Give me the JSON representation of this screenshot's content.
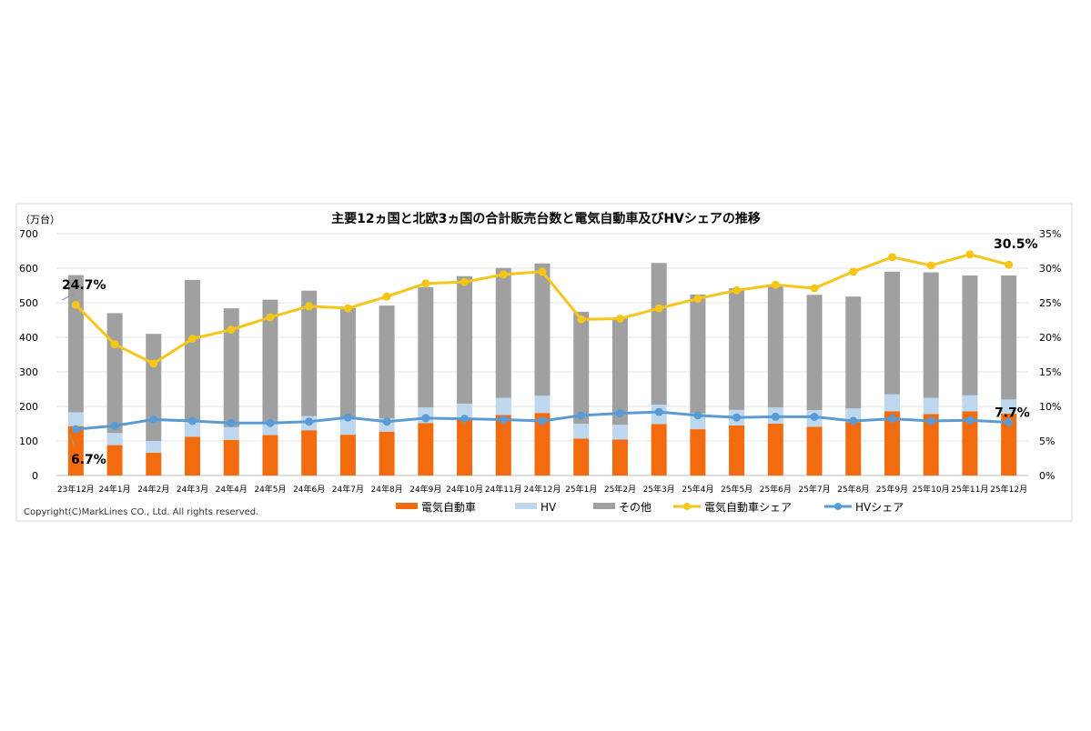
{
  "chart_data": {
    "type": "bar",
    "title": "主要12ヵ国と北欧3ヵ国の合計販売台数と電気自動車及びHVシェアの推移",
    "ylabel": "（万台）",
    "ylim": [
      0,
      700
    ],
    "y_ticks": [
      "0",
      "100",
      "200",
      "300",
      "400",
      "500",
      "600",
      "700"
    ],
    "y2lim": [
      0,
      35
    ],
    "y2_ticks": [
      "0%",
      "5%",
      "10%",
      "15%",
      "20%",
      "25%",
      "30%",
      "35%"
    ],
    "grid": true,
    "legend_position": "bottom",
    "categories": [
      "23年12月",
      "24年1月",
      "24年2月",
      "24年3月",
      "24年4月",
      "24年5月",
      "24年6月",
      "24年7月",
      "24年8月",
      "24年9月",
      "24年10月",
      "24年11月",
      "24年12月",
      "25年1月",
      "25年2月",
      "25年3月",
      "25年4月",
      "25年5月",
      "25年6月",
      "25年7月",
      "25年8月",
      "25年9月",
      "25年10月",
      "25年11月",
      "25年12月"
    ],
    "series": [
      {
        "name": "電気自動車",
        "kind": "bar",
        "color": "#f26b0f",
        "values": [
          143,
          88,
          66,
          112,
          103,
          117,
          131,
          118,
          127,
          152,
          162,
          175,
          181,
          107,
          104,
          149,
          134,
          145,
          150,
          141,
          155,
          186,
          178,
          186,
          179
        ]
      },
      {
        "name": "HV",
        "kind": "bar",
        "color": "#bdd7ee",
        "values": [
          40,
          35,
          34,
          46,
          37,
          38,
          41,
          47,
          38,
          45,
          46,
          50,
          50,
          43,
          43,
          56,
          46,
          45,
          47,
          48,
          39,
          49,
          47,
          46,
          41
        ]
      },
      {
        "name": "その他",
        "kind": "bar",
        "color": "#a0a0a0",
        "values": [
          397,
          347,
          310,
          408,
          344,
          354,
          363,
          320,
          327,
          348,
          369,
          376,
          383,
          324,
          310,
          410,
          344,
          352,
          350,
          334,
          324,
          355,
          363,
          347,
          359
        ]
      },
      {
        "name": "電気自動車シェア",
        "kind": "line",
        "axis": "right",
        "color": "#f5c518",
        "values": [
          24.7,
          19.0,
          16.2,
          19.8,
          21.1,
          22.9,
          24.5,
          24.2,
          25.9,
          27.8,
          28.0,
          29.1,
          29.5,
          22.6,
          22.7,
          24.2,
          25.6,
          26.8,
          27.6,
          27.1,
          29.5,
          31.6,
          30.4,
          32.0,
          30.5
        ]
      },
      {
        "name": "HVシェア",
        "kind": "line",
        "axis": "right",
        "color": "#5b9bd5",
        "values": [
          6.7,
          7.2,
          8.1,
          7.9,
          7.6,
          7.6,
          7.8,
          8.4,
          7.8,
          8.3,
          8.2,
          8.1,
          7.9,
          8.7,
          9.0,
          9.2,
          8.7,
          8.4,
          8.5,
          8.5,
          7.9,
          8.2,
          7.9,
          8.0,
          7.7
        ]
      }
    ],
    "annotations": [
      "24.7%",
      "6.7%",
      "30.5%",
      "7.7%"
    ]
  },
  "copyright": "Copyright(C)MarkLines CO., Ltd. All rights reserved."
}
